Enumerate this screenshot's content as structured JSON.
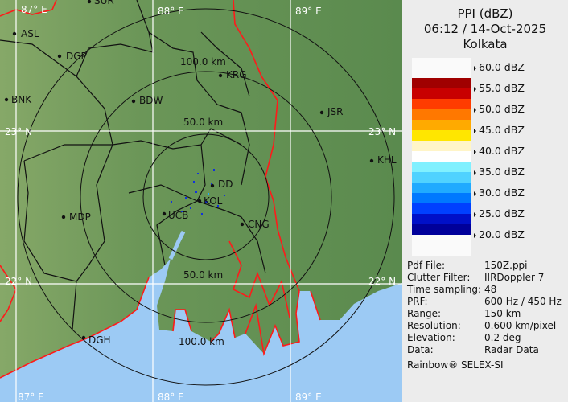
{
  "panel": {
    "product": "PPI (dBZ)",
    "datetime": "06:12 / 14-Oct-2025",
    "station": "Kolkata",
    "legend": [
      {
        "label": "60.0 dBZ"
      },
      {
        "label": "55.0 dBZ"
      },
      {
        "label": "50.0 dBZ"
      },
      {
        "label": "45.0 dBZ"
      },
      {
        "label": "40.0 dBZ"
      },
      {
        "label": "35.0 dBZ"
      },
      {
        "label": "30.0 dBZ"
      },
      {
        "label": "25.0 dBZ"
      },
      {
        "label": "20.0 dBZ"
      }
    ],
    "color_scale": [
      "#a00000",
      "#c80000",
      "#ff3c00",
      "#ff7800",
      "#ffaa00",
      "#ffe600",
      "#fff5c8",
      "#ffffff",
      "#80f0ff",
      "#50d2ff",
      "#20aaff",
      "#0078ff",
      "#0040ff",
      "#0010c8",
      "#00009a"
    ],
    "info": [
      {
        "key": "Pdf File:",
        "value": "150Z.ppi"
      },
      {
        "key": "Clutter Filter:",
        "value": "IIRDoppler 7"
      },
      {
        "key": "Time sampling:",
        "value": "48"
      },
      {
        "key": "PRF:",
        "value": "600 Hz / 450 Hz"
      },
      {
        "key": "Range:",
        "value": "150 km"
      },
      {
        "key": "Resolution:",
        "value": "0.600 km/pixel"
      },
      {
        "key": "Elevation:",
        "value": "0.2 deg"
      },
      {
        "key": "Data:",
        "value": "Radar Data"
      }
    ],
    "footer": "Rainbow® SELEX-SI"
  },
  "map": {
    "grid": {
      "lon": [
        "87° E",
        "88° E",
        "89° E"
      ],
      "lat": [
        "23° N",
        "22° N"
      ]
    },
    "rings": [
      "50.0 km",
      "100.0 km"
    ],
    "cities": [
      "SUR",
      "ASL",
      "DGP",
      "BNK",
      "BDW",
      "KRG",
      "JSR",
      "KHL",
      "MDP",
      "DD",
      "KOL",
      "UCB",
      "CNG",
      "DGH"
    ],
    "colors": {
      "land": "#5e8c50",
      "sea": "#9ccaf4",
      "border": "#ff1a1a"
    }
  }
}
